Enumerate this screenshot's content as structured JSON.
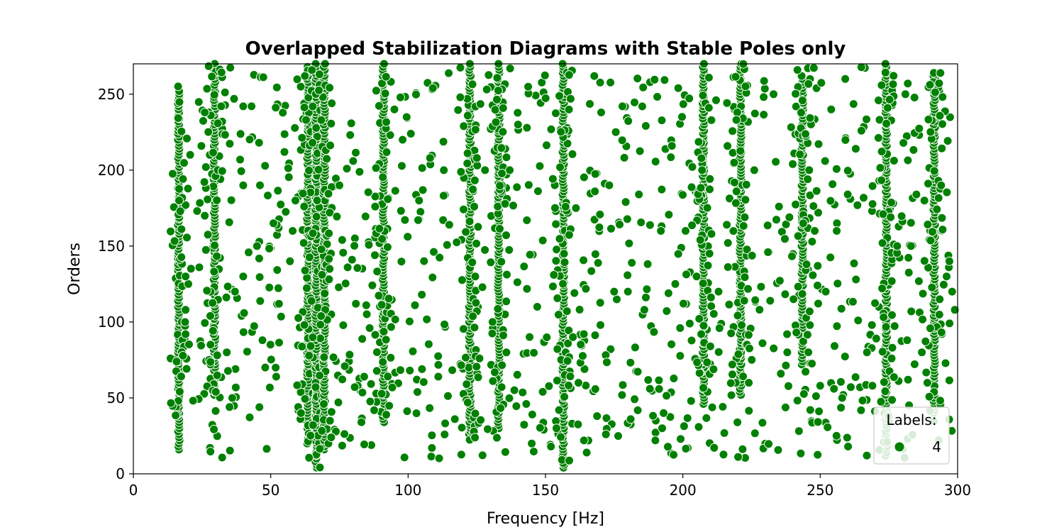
{
  "chart_data": {
    "type": "scatter",
    "title": "Overlapped Stabilization Diagrams with Stable Poles only",
    "xlabel": "Frequency [Hz]",
    "ylabel": "Orders",
    "xlim": [
      0,
      300
    ],
    "ylim": [
      0,
      270
    ],
    "xticks": [
      0,
      50,
      100,
      150,
      200,
      250,
      300
    ],
    "yticks": [
      0,
      50,
      100,
      150,
      200,
      250
    ],
    "grid": false,
    "legend": {
      "title": "Labels:",
      "placement": "bottom-right",
      "entries": [
        "4"
      ]
    },
    "series": [
      {
        "name": "4",
        "color": "#008000",
        "columns": [
          {
            "x": 16.5,
            "ymin": 16,
            "ymax": 252
          },
          {
            "x": 29.5,
            "ymin": 52,
            "ymax": 270
          },
          {
            "x": 63.5,
            "ymin": 20,
            "ymax": 268
          },
          {
            "x": 66.5,
            "ymin": 4,
            "ymax": 270
          },
          {
            "x": 69.5,
            "ymin": 16,
            "ymax": 270
          },
          {
            "x": 91,
            "ymin": 34,
            "ymax": 270
          },
          {
            "x": 122.5,
            "ymin": 22,
            "ymax": 270
          },
          {
            "x": 133,
            "ymin": 30,
            "ymax": 270
          },
          {
            "x": 156.5,
            "ymin": 4,
            "ymax": 270
          },
          {
            "x": 207.5,
            "ymin": 46,
            "ymax": 270
          },
          {
            "x": 221,
            "ymin": 52,
            "ymax": 270
          },
          {
            "x": 243.5,
            "ymin": 72,
            "ymax": 262
          },
          {
            "x": 274,
            "ymin": 12,
            "ymax": 270
          },
          {
            "x": 291.5,
            "ymin": 40,
            "ymax": 264
          }
        ],
        "points": [
          [
            19,
            130
          ],
          [
            19,
            108
          ],
          [
            19,
            92
          ],
          [
            24,
            136
          ],
          [
            26,
            238
          ],
          [
            26,
            170
          ],
          [
            28,
            104
          ],
          [
            30,
            54
          ],
          [
            32,
            242
          ],
          [
            34,
            80
          ],
          [
            35,
            44
          ],
          [
            36,
            50
          ],
          [
            37,
            120
          ],
          [
            40,
            242
          ],
          [
            40,
            190
          ],
          [
            40,
            130
          ],
          [
            43,
            242
          ],
          [
            45,
            150
          ],
          [
            47,
            88
          ],
          [
            48,
            70
          ],
          [
            51,
            165
          ],
          [
            52,
            64
          ],
          [
            53,
            112
          ],
          [
            55,
            212
          ],
          [
            57,
            140
          ],
          [
            59,
            180
          ],
          [
            60,
            44
          ],
          [
            61,
            40
          ],
          [
            71,
            20
          ],
          [
            72,
            24
          ],
          [
            75,
            190
          ],
          [
            76,
            154
          ],
          [
            78,
            136
          ],
          [
            80,
            206
          ],
          [
            81,
            112
          ],
          [
            83,
            34
          ],
          [
            84,
            64
          ],
          [
            86,
            96
          ],
          [
            88,
            176
          ],
          [
            95,
            240
          ],
          [
            98,
            220
          ],
          [
            101,
            224
          ],
          [
            104,
            180
          ],
          [
            105,
            118
          ],
          [
            108,
            208
          ],
          [
            109,
            254
          ],
          [
            111,
            64
          ],
          [
            113,
            200
          ],
          [
            115,
            164
          ],
          [
            117,
            36
          ],
          [
            119,
            248
          ],
          [
            126,
            76
          ],
          [
            128,
            200
          ],
          [
            137,
            200
          ],
          [
            140,
            230
          ],
          [
            143,
            46
          ],
          [
            145,
            20
          ],
          [
            147,
            110
          ],
          [
            149,
            54
          ],
          [
            152,
            18
          ],
          [
            160,
            90
          ],
          [
            162,
            60
          ],
          [
            164,
            22
          ],
          [
            165,
            14
          ],
          [
            168,
            186
          ],
          [
            170,
            98
          ],
          [
            172,
            26
          ],
          [
            175,
            120
          ],
          [
            178,
            242
          ],
          [
            180,
            120
          ],
          [
            181,
            36
          ],
          [
            184,
            184
          ],
          [
            186,
            108
          ],
          [
            188,
            56
          ],
          [
            190,
            22
          ],
          [
            192,
            160
          ],
          [
            193,
            40
          ],
          [
            196,
            216
          ],
          [
            199,
            96
          ],
          [
            201,
            160
          ],
          [
            203,
            48
          ],
          [
            205,
            130
          ],
          [
            210,
            84
          ],
          [
            213,
            120
          ],
          [
            216,
            164
          ],
          [
            218,
            72
          ],
          [
            224,
            60
          ],
          [
            226,
            200
          ],
          [
            229,
            86
          ],
          [
            231,
            146
          ],
          [
            233,
            250
          ],
          [
            235,
            176
          ],
          [
            238,
            80
          ],
          [
            240,
            204
          ],
          [
            246,
            200
          ],
          [
            248,
            160
          ],
          [
            250,
            58
          ],
          [
            252,
            120
          ],
          [
            254,
            240
          ],
          [
            256,
            160
          ],
          [
            258,
            50
          ],
          [
            260,
            184
          ],
          [
            263,
            128
          ],
          [
            265,
            226
          ],
          [
            267,
            80
          ],
          [
            269,
            58
          ],
          [
            276,
            76
          ],
          [
            278,
            150
          ],
          [
            281,
            250
          ],
          [
            283,
            150
          ],
          [
            285,
            184
          ],
          [
            287,
            80
          ],
          [
            289,
            60
          ],
          [
            294,
            190
          ],
          [
            296,
            130
          ],
          [
            297,
            140
          ],
          [
            298,
            120
          ],
          [
            299,
            108
          ],
          [
            255,
            56
          ],
          [
            249,
            124
          ]
        ]
      }
    ]
  }
}
